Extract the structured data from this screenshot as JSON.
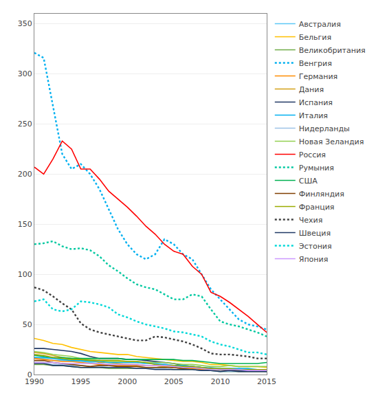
{
  "chart_data": {
    "type": "line",
    "x": [
      1990,
      1991,
      1992,
      1993,
      1994,
      1995,
      1996,
      1997,
      1998,
      1999,
      2000,
      2001,
      2002,
      2003,
      2004,
      2005,
      2006,
      2007,
      2008,
      2009,
      2010,
      2011,
      2012,
      2013,
      2014,
      2015
    ],
    "series": [
      {
        "name": "Австралия",
        "color": "#5BC8F5",
        "line_style": "solid",
        "values": [
          17,
          16,
          14,
          14,
          13,
          13,
          12,
          11,
          10,
          10,
          10,
          9,
          9,
          9,
          8,
          8,
          8,
          8,
          7,
          7,
          6,
          6,
          6,
          5,
          5,
          5
        ]
      },
      {
        "name": "Бельгия",
        "color": "#FFC000",
        "line_style": "solid",
        "values": [
          36,
          34,
          31,
          30,
          27,
          25,
          23,
          22,
          21,
          20,
          20,
          18,
          17,
          16,
          15,
          14,
          13,
          13,
          12,
          10,
          10,
          9,
          8,
          8,
          8,
          7
        ]
      },
      {
        "name": "Великобритания",
        "color": "#70AD47",
        "line_style": "solid",
        "values": [
          10,
          10,
          9,
          9,
          8,
          7,
          7,
          7,
          6,
          6,
          6,
          6,
          6,
          6,
          6,
          5,
          5,
          5,
          4,
          4,
          3,
          3,
          3,
          3,
          3,
          3
        ]
      },
      {
        "name": "Венгрия",
        "color": "#00B0F0",
        "line_style": "dotted",
        "values": [
          321,
          316,
          268,
          220,
          205,
          210,
          200,
          185,
          165,
          145,
          130,
          120,
          115,
          120,
          135,
          130,
          120,
          115,
          100,
          85,
          75,
          65,
          55,
          50,
          48,
          45
        ]
      },
      {
        "name": "Германия",
        "color": "#FF8C00",
        "line_style": "solid",
        "values": [
          16,
          15,
          14,
          13,
          13,
          12,
          11,
          10,
          10,
          9,
          9,
          9,
          9,
          9,
          8,
          7,
          6,
          6,
          5,
          5,
          5,
          5,
          4,
          4,
          4,
          4
        ]
      },
      {
        "name": "Дания",
        "color": "#D4A017",
        "line_style": "solid",
        "values": [
          22,
          21,
          19,
          17,
          16,
          15,
          14,
          12,
          12,
          11,
          10,
          10,
          9,
          9,
          8,
          7,
          6,
          7,
          6,
          5,
          5,
          4,
          3,
          3,
          3,
          3
        ]
      },
      {
        "name": "Испания",
        "color": "#203864",
        "line_style": "solid",
        "values": [
          26,
          26,
          25,
          24,
          23,
          21,
          18,
          16,
          16,
          16,
          15,
          15,
          14,
          13,
          12,
          11,
          9,
          8,
          7,
          6,
          5,
          5,
          4,
          4,
          4,
          3
        ]
      },
      {
        "name": "Италия",
        "color": "#00B0F0",
        "line_style": "solid",
        "values": [
          17,
          17,
          16,
          15,
          14,
          14,
          13,
          13,
          12,
          12,
          12,
          12,
          11,
          11,
          10,
          9,
          9,
          8,
          7,
          6,
          6,
          6,
          6,
          6,
          5,
          5
        ]
      },
      {
        "name": "Нидерланды",
        "color": "#9DC3E6",
        "line_style": "solid",
        "values": [
          12,
          12,
          10,
          10,
          9,
          9,
          8,
          8,
          7,
          7,
          7,
          6,
          6,
          6,
          6,
          5,
          5,
          5,
          4,
          4,
          3,
          3,
          3,
          3,
          3,
          3
        ]
      },
      {
        "name": "Новая Зеландия",
        "color": "#92D050",
        "line_style": "solid",
        "values": [
          23,
          22,
          20,
          19,
          18,
          16,
          15,
          14,
          13,
          13,
          13,
          13,
          12,
          12,
          12,
          11,
          10,
          10,
          9,
          8,
          8,
          9,
          8,
          8,
          8,
          8
        ]
      },
      {
        "name": "Россия",
        "color": "#FF0000",
        "line_style": "solid",
        "values": [
          207,
          200,
          215,
          233,
          225,
          205,
          205,
          195,
          183,
          175,
          167,
          158,
          148,
          140,
          130,
          123,
          120,
          108,
          100,
          82,
          78,
          72,
          65,
          58,
          50,
          42
        ]
      },
      {
        "name": "Румыния",
        "color": "#00C8A0",
        "line_style": "dotted",
        "values": [
          130,
          131,
          133,
          128,
          125,
          126,
          124,
          118,
          109,
          103,
          96,
          90,
          87,
          85,
          80,
          75,
          75,
          80,
          78,
          65,
          53,
          50,
          48,
          45,
          42,
          38
        ]
      },
      {
        "name": "США",
        "color": "#00B050",
        "line_style": "solid",
        "values": [
          19,
          18,
          17,
          17,
          16,
          16,
          16,
          16,
          16,
          16,
          15,
          15,
          15,
          15,
          15,
          15,
          14,
          14,
          13,
          12,
          11,
          11,
          11,
          11,
          11,
          12
        ]
      },
      {
        "name": "Финляндия",
        "color": "#7F3F00",
        "line_style": "solid",
        "values": [
          14,
          14,
          12,
          11,
          10,
          9,
          8,
          9,
          9,
          8,
          8,
          8,
          7,
          7,
          7,
          7,
          6,
          7,
          6,
          6,
          5,
          5,
          5,
          5,
          5,
          4
        ]
      },
      {
        "name": "Франция",
        "color": "#9AAB00",
        "line_style": "solid",
        "values": [
          20,
          19,
          17,
          16,
          15,
          15,
          14,
          14,
          14,
          14,
          13,
          13,
          12,
          10,
          9,
          9,
          8,
          8,
          7,
          6,
          6,
          6,
          5,
          5,
          5,
          5
        ]
      },
      {
        "name": "Чехия",
        "color": "#404040",
        "line_style": "dotted",
        "values": [
          87,
          84,
          78,
          71,
          65,
          51,
          45,
          42,
          40,
          38,
          36,
          34,
          34,
          38,
          37,
          35,
          33,
          30,
          26,
          21,
          20,
          20,
          19,
          18,
          16,
          16
        ]
      },
      {
        "name": "Швеция",
        "color": "#1F3864",
        "line_style": "solid",
        "values": [
          11,
          11,
          9,
          9,
          8,
          7,
          7,
          7,
          7,
          7,
          7,
          6,
          6,
          5,
          5,
          5,
          5,
          5,
          4,
          4,
          3,
          4,
          3,
          3,
          3,
          3
        ]
      },
      {
        "name": "Эстония",
        "color": "#00D8D8",
        "line_style": "dotted",
        "values": [
          73,
          75,
          65,
          63,
          65,
          73,
          72,
          70,
          67,
          60,
          57,
          53,
          50,
          48,
          46,
          43,
          42,
          40,
          38,
          33,
          30,
          28,
          25,
          22,
          22,
          20
        ]
      },
      {
        "name": "Япония",
        "color": "#CC99FF",
        "line_style": "solid",
        "values": [
          12,
          12,
          12,
          11,
          11,
          11,
          11,
          11,
          10,
          10,
          10,
          10,
          9,
          9,
          9,
          8,
          7,
          7,
          6,
          5,
          5,
          5,
          5,
          4,
          4,
          4
        ]
      }
    ],
    "xlim": [
      1990,
      2015
    ],
    "xticks": [
      1990,
      1995,
      2000,
      2005,
      2010,
      2015
    ],
    "ylim": [
      0,
      360
    ],
    "yticks": [
      0,
      50,
      100,
      150,
      200,
      250,
      300,
      350
    ],
    "grid": "y",
    "legend": "right"
  }
}
